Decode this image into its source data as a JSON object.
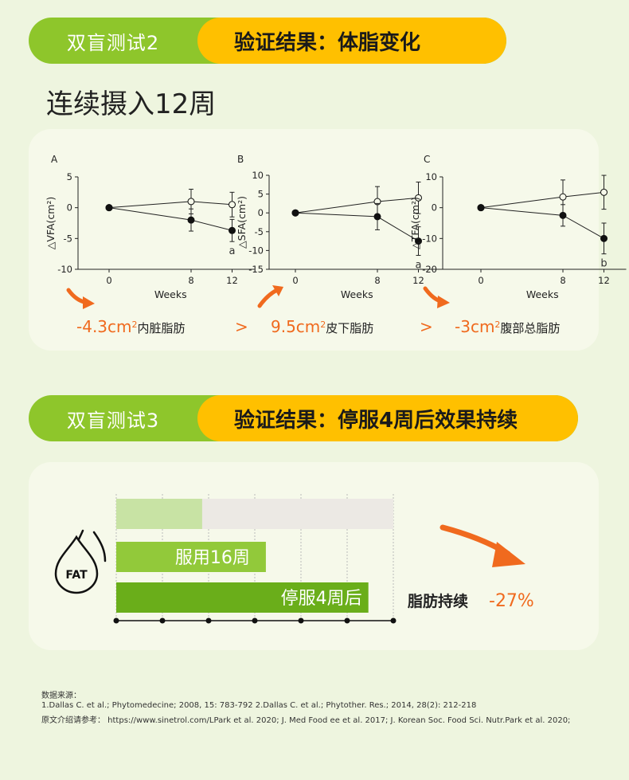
{
  "section1": {
    "left": "双盲测试2",
    "right": "验证结果：体脂变化",
    "subtitle": "连续摄入12周"
  },
  "section2": {
    "left": "双盲测试3",
    "right": "验证结果：停服4周后效果持续"
  },
  "colors": {
    "green": "#8ec62b",
    "yellow": "#ffc000",
    "orange": "#f06a1e",
    "light_green": "#c8e3a4",
    "dark_green": "#6aae1a",
    "gray_bar": "#ece9e4"
  },
  "chart_data": [
    {
      "type": "line",
      "panel": "A",
      "ylabel": "△VFA(cm²)",
      "xlabel": "Weeks",
      "x": [
        0,
        8,
        12
      ],
      "ylim": [
        -10,
        5
      ],
      "yticks": [
        5,
        0,
        -5,
        -10
      ],
      "series": [
        {
          "marker": "open-circle",
          "values": [
            0,
            1,
            0.5
          ],
          "err": [
            0,
            2,
            2
          ]
        },
        {
          "marker": "filled-circle",
          "values": [
            0,
            -2,
            -3.7
          ],
          "err": [
            0,
            1.8,
            1.8
          ]
        }
      ],
      "annotation": "a"
    },
    {
      "type": "line",
      "panel": "B",
      "ylabel": "△SFA(cm²)",
      "xlabel": "Weeks",
      "x": [
        0,
        8,
        12
      ],
      "ylim": [
        -15,
        10
      ],
      "yticks": [
        10,
        5,
        0,
        -5,
        -10,
        -15
      ],
      "series": [
        {
          "marker": "open-circle",
          "values": [
            0,
            3,
            4
          ],
          "err": [
            0,
            4,
            4.2
          ]
        },
        {
          "marker": "filled-circle",
          "values": [
            0,
            -1,
            -7.5
          ],
          "err": [
            0,
            3.5,
            3.8
          ]
        }
      ],
      "annotation": "a"
    },
    {
      "type": "line",
      "panel": "C",
      "ylabel": "△TFA(cm²)",
      "xlabel": "Weeks",
      "x": [
        0,
        8,
        12
      ],
      "ylim": [
        -20,
        10
      ],
      "yticks": [
        10,
        0,
        -10,
        -20
      ],
      "series": [
        {
          "marker": "open-circle",
          "values": [
            0,
            3.5,
            5
          ],
          "err": [
            0,
            5.5,
            5.5
          ]
        },
        {
          "marker": "filled-circle",
          "values": [
            0,
            -2.5,
            -10
          ],
          "err": [
            0,
            3.5,
            5
          ]
        }
      ],
      "annotation": "b"
    },
    {
      "type": "bar",
      "bars": [
        {
          "label": "",
          "value": 0.31,
          "background_full": 1.0
        },
        {
          "label": "服用16周",
          "value": 0.54
        },
        {
          "label": "停服4周后",
          "value": 0.91
        }
      ],
      "result_label": "脂肪持续",
      "result_value": "-27%"
    }
  ],
  "results": [
    {
      "value": "-4.3cm",
      "sup": "2",
      "label": "内脏脂肪"
    },
    {
      "value": "9.5cm",
      "sup": "2",
      "label": "皮下脂肪"
    },
    {
      "value": "-3cm",
      "sup": "2",
      "label": "腹部总脂肪"
    }
  ],
  "gt_symbol": ">",
  "fat_icon_label": "FAT",
  "sources": {
    "heading": "数据来源：",
    "line1": "1.Dallas C. et al.; Phytomedecine; 2008, 15: 783-792   2.Dallas C. et al.; Phytother. Res.; 2014, 28(2): 212-218",
    "line2": "原文介绍请参考： https://www.sinetrol.com/LPark et al. 2020; J. Med Food ee et al. 2017; J. Korean Soc. Food Sci. Nutr.Park et al. 2020;"
  }
}
